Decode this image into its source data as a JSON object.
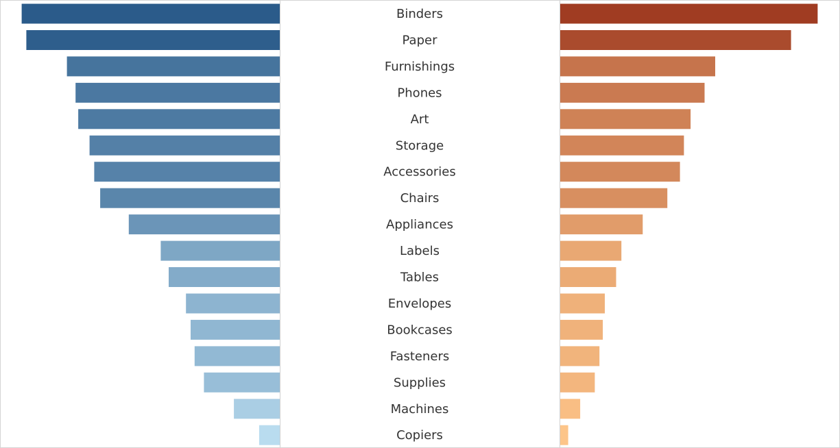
{
  "chart_data": {
    "type": "bar",
    "layout": "butterfly",
    "categories": [
      "Binders",
      "Paper",
      "Furnishings",
      "Phones",
      "Art",
      "Storage",
      "Accessories",
      "Chairs",
      "Appliances",
      "Labels",
      "Tables",
      "Envelopes",
      "Bookcases",
      "Fasteners",
      "Supplies",
      "Machines",
      "Copiers"
    ],
    "series": [
      {
        "side": "left",
        "values": [
          388,
          381,
          320,
          307,
          303,
          286,
          279,
          270,
          227,
          179,
          167,
          141,
          134,
          128,
          114,
          69,
          31
        ],
        "color_dark": "#2b5b8a",
        "color_light": "#b9dcef"
      },
      {
        "side": "right",
        "values": [
          387,
          347,
          233,
          217,
          196,
          186,
          180,
          161,
          124,
          92,
          84,
          67,
          64,
          59,
          52,
          30,
          12
        ],
        "color_dark": "#a03c22",
        "color_light": "#fdc589"
      }
    ],
    "title": "",
    "xlabel": "",
    "ylabel": "",
    "xlim": [
      0,
      400
    ],
    "grid": false,
    "legend": "none"
  }
}
